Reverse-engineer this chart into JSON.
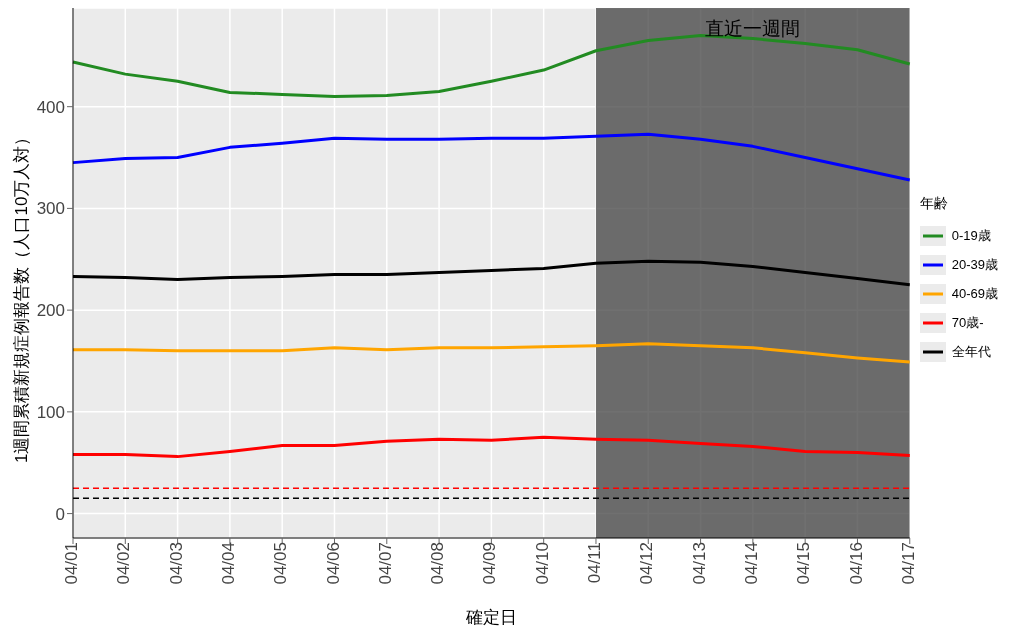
{
  "chart_data": {
    "type": "line",
    "xlabel": "確定日",
    "ylabel": "1週間累積新規症例報告数（人口10万人対）",
    "legend_title": "年齢",
    "legend": "right",
    "grid": true,
    "marker": "none",
    "line_style": "solid",
    "categories": [
      "04/01",
      "04/02",
      "04/03",
      "04/04",
      "04/05",
      "04/06",
      "04/07",
      "04/08",
      "04/09",
      "04/10",
      "04/11",
      "04/12",
      "04/13",
      "04/14",
      "04/15",
      "04/16",
      "04/17"
    ],
    "ylim": [
      -24,
      497
    ],
    "yticks": [
      0,
      100,
      200,
      300,
      400
    ],
    "series": [
      {
        "name": "0-19歳",
        "color": "#228b22",
        "values": [
          444,
          432,
          425,
          414,
          412,
          410,
          411,
          415,
          425,
          436,
          455,
          465,
          470,
          467,
          462,
          456,
          442
        ]
      },
      {
        "name": "20-39歳",
        "color": "#0000ff",
        "values": [
          345,
          349,
          350,
          360,
          364,
          369,
          368,
          368,
          369,
          369,
          371,
          373,
          368,
          361,
          350,
          339,
          328
        ]
      },
      {
        "name": "40-69歳",
        "color": "#ffa500",
        "values": [
          161,
          161,
          160,
          160,
          160,
          163,
          161,
          163,
          163,
          164,
          165,
          167,
          165,
          163,
          158,
          153,
          149
        ]
      },
      {
        "name": "70歳-",
        "color": "#ff0000",
        "values": [
          58,
          58,
          56,
          61,
          67,
          67,
          71,
          73,
          72,
          75,
          73,
          72,
          69,
          66,
          61,
          60,
          57
        ]
      },
      {
        "name": "全年代",
        "color": "#000000",
        "values": [
          233,
          232,
          230,
          232,
          233,
          235,
          235,
          237,
          239,
          241,
          246,
          248,
          247,
          243,
          237,
          231,
          225
        ]
      }
    ],
    "ref_lines": [
      {
        "axis": "y",
        "value": 25,
        "color": "#ff0000",
        "line_style": "dashed"
      },
      {
        "axis": "y",
        "value": 15,
        "color": "#000000",
        "line_style": "dashed"
      }
    ],
    "bands": [
      {
        "axis": "x",
        "from": "04/11",
        "to": "04/17",
        "label": "直近一週間",
        "color": "#404040"
      }
    ]
  }
}
